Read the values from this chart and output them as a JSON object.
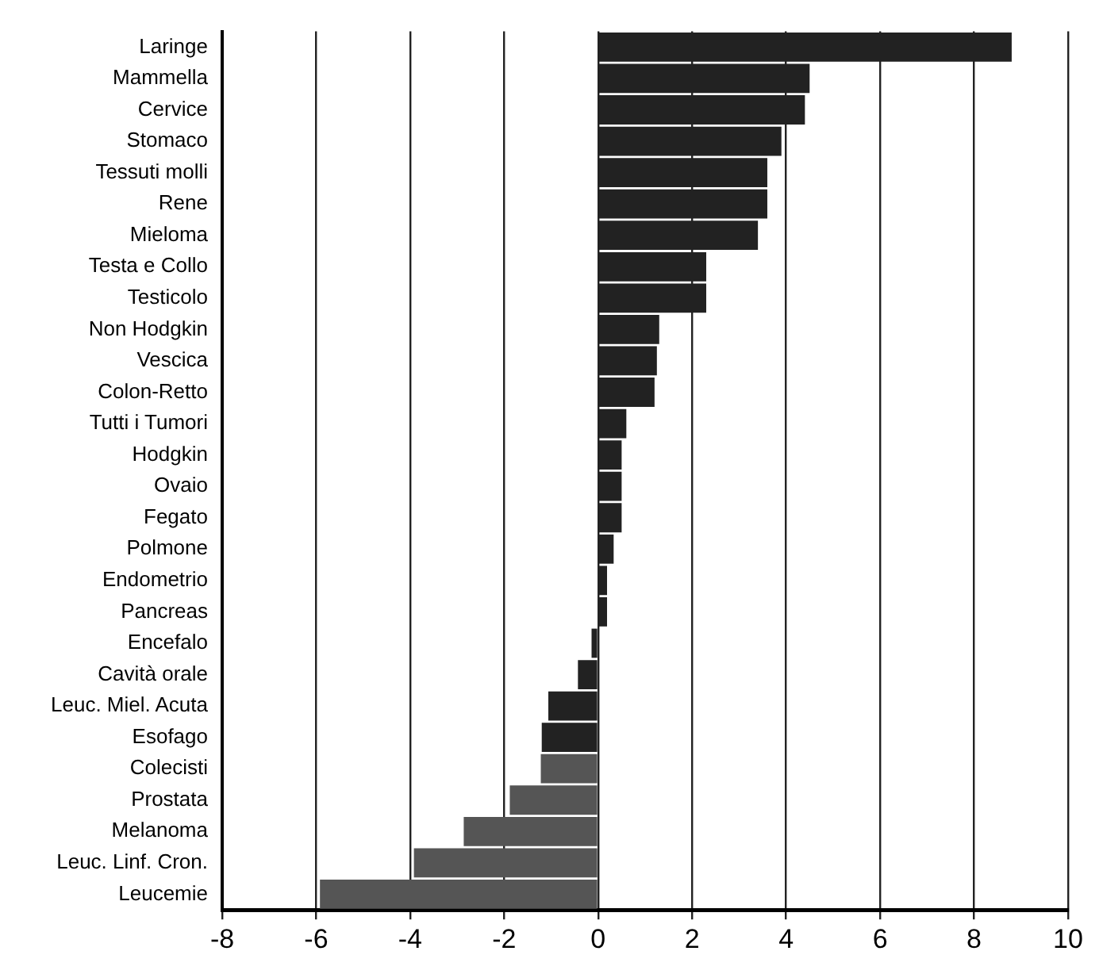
{
  "chart_data": {
    "type": "bar",
    "orientation": "horizontal",
    "categories": [
      "Laringe",
      "Mammella",
      "Cervice",
      "Stomaco",
      "Tessuti molli",
      "Rene",
      "Mieloma",
      "Testa e Collo",
      "Testicolo",
      "Non Hodgkin",
      "Vescica",
      "Colon-Retto",
      "Tutti i Tumori",
      "Hodgkin",
      "Ovaio",
      "Fegato",
      "Polmone",
      "Endometrio",
      "Pancreas",
      "Encefalo",
      "Cavità orale",
      "Leuc. Miel. Acuta",
      "Esofago",
      "Colecisti",
      "Prostata",
      "Melanoma",
      "Leuc. Linf. Cron.",
      "Leucemie"
    ],
    "values": [
      8.8,
      4.5,
      4.4,
      3.9,
      3.6,
      3.6,
      3.4,
      2.3,
      2.3,
      1.3,
      1.25,
      1.2,
      0.6,
      0.5,
      0.5,
      0.5,
      0.33,
      0.19,
      0.19,
      -0.14,
      -0.43,
      -1.06,
      -1.2,
      -1.22,
      -1.88,
      -2.86,
      -3.92,
      -5.92
    ],
    "colors": [
      "#222222",
      "#222222",
      "#222222",
      "#222222",
      "#222222",
      "#222222",
      "#222222",
      "#222222",
      "#222222",
      "#222222",
      "#222222",
      "#222222",
      "#222222",
      "#222222",
      "#222222",
      "#222222",
      "#222222",
      "#222222",
      "#222222",
      "#222222",
      "#222222",
      "#222222",
      "#222222",
      "#555555",
      "#555555",
      "#555555",
      "#555555",
      "#555555"
    ],
    "xlim": [
      -8,
      10
    ],
    "xticks": [
      -8,
      -6,
      -4,
      -2,
      0,
      2,
      4,
      6,
      8,
      10
    ],
    "grid": "x",
    "legend": false
  }
}
